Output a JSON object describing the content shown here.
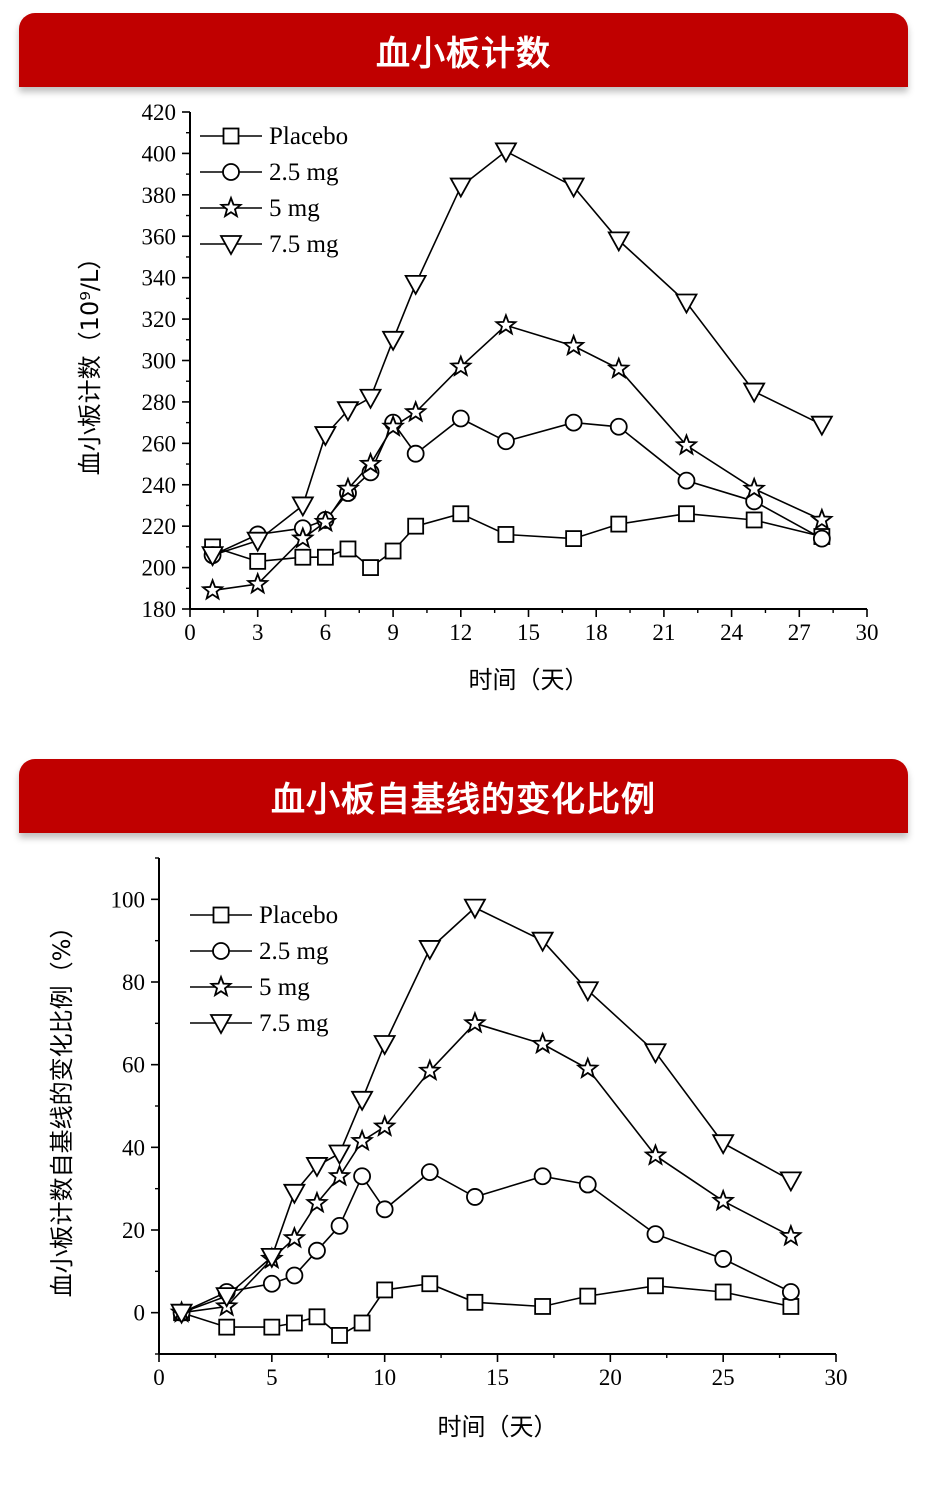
{
  "banners": {
    "top": "血小板计数",
    "bottom": "血小板自基线的变化比例"
  },
  "chart_data": [
    {
      "type": "line",
      "title": "血小板计数",
      "xlabel": "时间（天）",
      "ylabel": "血小板计数（10⁹/L）",
      "xlim": [
        0,
        30
      ],
      "ylim": [
        180,
        420
      ],
      "xticks": [
        0,
        3,
        6,
        9,
        12,
        15,
        18,
        21,
        24,
        27,
        30
      ],
      "yticks": [
        180,
        200,
        220,
        240,
        260,
        280,
        300,
        320,
        340,
        360,
        380,
        400,
        420
      ],
      "grid": false,
      "legend_position": "top-left",
      "series": [
        {
          "name": "Placebo",
          "marker": "square",
          "x": [
            1,
            3,
            5,
            6,
            7,
            8,
            9,
            10,
            12,
            14,
            17,
            19,
            22,
            25,
            28
          ],
          "y": [
            210,
            203,
            205,
            205,
            209,
            200,
            208,
            220,
            226,
            216,
            214,
            221,
            226,
            223,
            215
          ]
        },
        {
          "name": "2.5 mg",
          "marker": "circle",
          "x": [
            1,
            3,
            5,
            6,
            7,
            8,
            9,
            10,
            12,
            14,
            17,
            19,
            22,
            25,
            28
          ],
          "y": [
            206,
            216,
            219,
            223,
            236,
            246,
            270,
            255,
            272,
            261,
            270,
            268,
            242,
            232,
            214
          ]
        },
        {
          "name": "5 mg",
          "marker": "star",
          "x": [
            1,
            3,
            5,
            6,
            7,
            8,
            9,
            10,
            12,
            14,
            17,
            19,
            22,
            25,
            28
          ],
          "y": [
            189,
            192,
            214,
            222,
            238,
            250,
            268,
            275,
            297,
            317,
            307,
            296,
            259,
            238,
            223
          ]
        },
        {
          "name": "7.5 mg",
          "marker": "triangle-down",
          "x": [
            1,
            3,
            5,
            6,
            7,
            8,
            9,
            10,
            12,
            14,
            17,
            19,
            22,
            25,
            28
          ],
          "y": [
            206,
            213,
            230,
            264,
            276,
            282,
            310,
            337,
            384,
            401,
            384,
            358,
            328,
            285,
            269
          ]
        }
      ]
    },
    {
      "type": "line",
      "title": "血小板自基线的变化比例",
      "xlabel": "时间（天）",
      "ylabel": "血小板计数自基线的变化比例（%）",
      "xlim": [
        0,
        30
      ],
      "ylim": [
        -10,
        110
      ],
      "xticks": [
        0,
        5,
        10,
        15,
        20,
        25,
        30
      ],
      "yticks": [
        0,
        20,
        40,
        60,
        80,
        100
      ],
      "grid": false,
      "legend_position": "top-left",
      "series": [
        {
          "name": "Placebo",
          "marker": "square",
          "x": [
            1,
            3,
            5,
            6,
            7,
            8,
            9,
            10,
            12,
            14,
            17,
            19,
            22,
            25,
            28
          ],
          "y": [
            0,
            -3.5,
            -3.5,
            -2.5,
            -1,
            -5.5,
            -2.5,
            5.5,
            7,
            2.5,
            1.5,
            4,
            6.5,
            5,
            1.5
          ]
        },
        {
          "name": "2.5 mg",
          "marker": "circle",
          "x": [
            1,
            3,
            5,
            6,
            7,
            8,
            9,
            10,
            12,
            14,
            17,
            19,
            22,
            25,
            28
          ],
          "y": [
            0,
            5,
            7,
            9,
            15,
            21,
            33,
            25,
            34,
            28,
            33,
            31,
            19,
            13,
            5
          ]
        },
        {
          "name": "5 mg",
          "marker": "star",
          "x": [
            1,
            3,
            5,
            6,
            7,
            8,
            9,
            10,
            12,
            14,
            17,
            19,
            22,
            25,
            28
          ],
          "y": [
            0,
            1.5,
            13,
            18,
            26.5,
            33,
            41.5,
            45,
            58.5,
            70,
            65,
            59,
            38,
            27,
            18.5
          ]
        },
        {
          "name": "7.5 mg",
          "marker": "triangle-down",
          "x": [
            1,
            3,
            5,
            6,
            7,
            8,
            9,
            10,
            12,
            14,
            17,
            19,
            22,
            25,
            28
          ],
          "y": [
            0,
            4,
            13.5,
            29,
            35.5,
            38.5,
            51.5,
            65,
            88,
            98,
            90,
            78,
            63,
            41,
            32
          ]
        }
      ]
    }
  ]
}
